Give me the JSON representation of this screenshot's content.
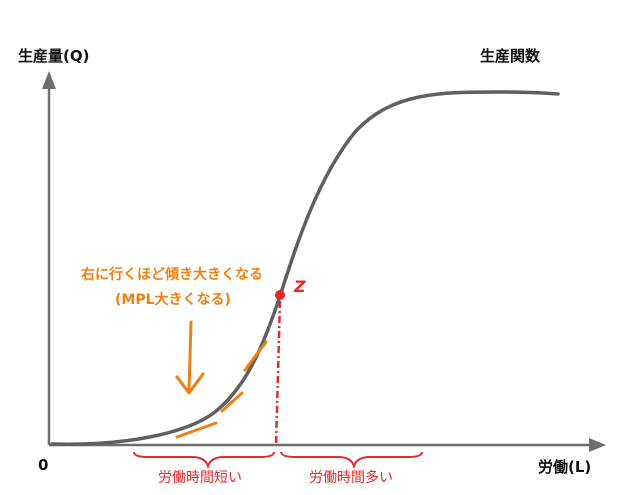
{
  "labels": {
    "y_axis": "生産量(Q)",
    "x_axis": "労働(L)",
    "origin": "0",
    "curve": "生産関数",
    "annotation_line1": "右に行くほど傾き大きくなる",
    "annotation_line2": "(MPL大きくなる)",
    "point_mark": "Z",
    "range_left": "労働時間短い",
    "range_right": "労働時間多い"
  },
  "colors": {
    "axis": "#6e6e6e",
    "curve": "#5f5f5f",
    "annotation": "#f07f12",
    "marker": "#e32a2a",
    "text": "#111111"
  }
}
